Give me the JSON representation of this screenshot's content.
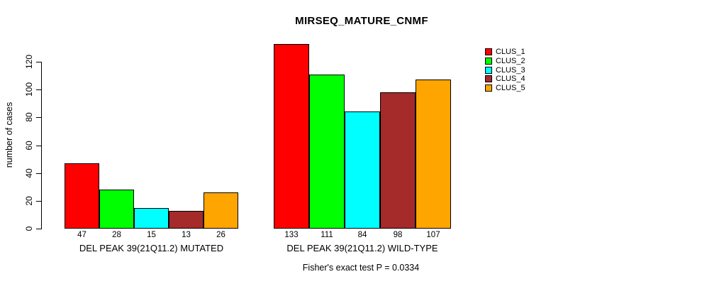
{
  "title": "MIRSEQ_MATURE_CNMF",
  "y_axis": {
    "label": "number of cases",
    "ticks": [
      0,
      20,
      40,
      60,
      80,
      100,
      120
    ]
  },
  "footer": "Fisher's exact test P = 0.0334",
  "legend": {
    "items": [
      {
        "label": "CLUS_1",
        "color": "#FF0000"
      },
      {
        "label": "CLUS_2",
        "color": "#00FF00"
      },
      {
        "label": "CLUS_3",
        "color": "#00FFFF"
      },
      {
        "label": "CLUS_4",
        "color": "#A52A2A"
      },
      {
        "label": "CLUS_5",
        "color": "#FFA500"
      }
    ]
  },
  "chart_data": {
    "type": "bar",
    "title": "MIRSEQ_MATURE_CNMF",
    "xlabel": "",
    "ylabel": "number of cases",
    "ylim": [
      0,
      140
    ],
    "yticks": [
      0,
      20,
      40,
      60,
      80,
      100,
      120
    ],
    "grid": false,
    "legend_position": "right",
    "series": [
      "CLUS_1",
      "CLUS_2",
      "CLUS_3",
      "CLUS_4",
      "CLUS_5"
    ],
    "colors": [
      "#FF0000",
      "#00FF00",
      "#00FFFF",
      "#A52A2A",
      "#FFA500"
    ],
    "groups": [
      {
        "label": "DEL PEAK 39(21Q11.2) MUTATED",
        "values": [
          47,
          28,
          15,
          13,
          26
        ]
      },
      {
        "label": "DEL PEAK 39(21Q11.2) WILD-TYPE",
        "values": [
          133,
          111,
          84,
          98,
          107
        ]
      }
    ],
    "bar_values_labeled": true,
    "annotation": "Fisher's exact test P = 0.0334"
  }
}
